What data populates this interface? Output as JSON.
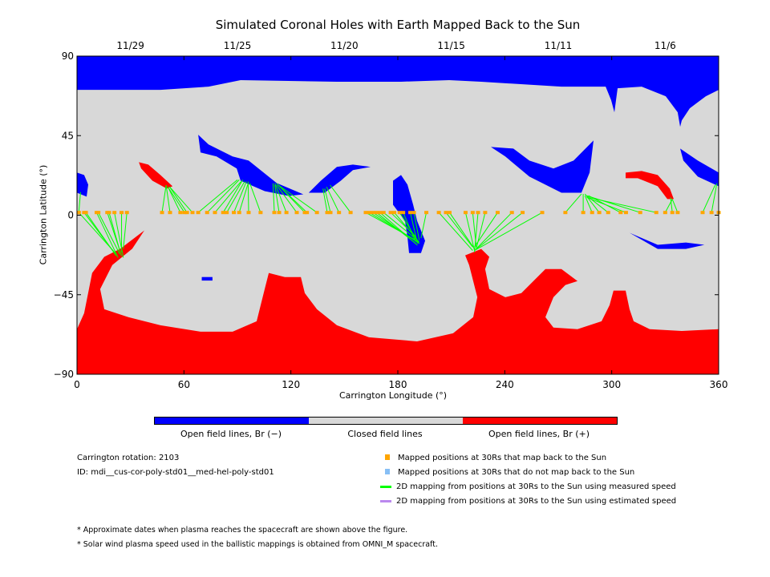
{
  "chart_data": {
    "type": "map",
    "title": "Simulated Coronal Holes with Earth Mapped Back to the Sun",
    "xlabel": "Carrington Longitude (°)",
    "ylabel": "Carrington Latitude (°)",
    "xlim": [
      0,
      360
    ],
    "ylim": [
      -90,
      90
    ],
    "xticks": [
      "0",
      "60",
      "120",
      "180",
      "240",
      "300",
      "360"
    ],
    "yticks": [
      "90",
      "45",
      "0",
      "−45",
      "−90"
    ],
    "top_dates": [
      {
        "label": "11/29",
        "lon": 30
      },
      {
        "label": "11/25",
        "lon": 90
      },
      {
        "label": "11/20",
        "lon": 150
      },
      {
        "label": "11/15",
        "lon": 210
      },
      {
        "label": "11/11",
        "lon": 270
      },
      {
        "label": "11/6",
        "lon": 330
      }
    ],
    "colors": {
      "negative": "#0000ff",
      "closed": "#d8d8d8",
      "positive": "#ff0000",
      "mapped": "#ffa500",
      "unmapped": "#87bff5",
      "measured": "#00ff00",
      "estimated": "#bb88ee"
    },
    "regions": [
      {
        "polarity": "negative",
        "points": [
          [
            0,
            90
          ],
          [
            360,
            90
          ],
          [
            360,
            70.9
          ],
          [
            352.8,
            67.3
          ],
          [
            343.8,
            60.5
          ],
          [
            339.3,
            53.6
          ],
          [
            338.4,
            50
          ],
          [
            337,
            58.2
          ],
          [
            330.3,
            67.3
          ],
          [
            316.8,
            72.7
          ],
          [
            303.3,
            71.8
          ],
          [
            301.5,
            58.2
          ],
          [
            299.7,
            65
          ],
          [
            296.6,
            72.7
          ],
          [
            271.8,
            72.7
          ],
          [
            226.8,
            75.5
          ],
          [
            208.8,
            76.4
          ],
          [
            181.8,
            75.5
          ],
          [
            145.8,
            75.5
          ],
          [
            91.8,
            76.4
          ],
          [
            73.8,
            72.7
          ],
          [
            46.8,
            70.9
          ],
          [
            0,
            70.9
          ]
        ]
      },
      {
        "polarity": "positive",
        "points": [
          [
            0,
            -64.5
          ],
          [
            4,
            -55.5
          ],
          [
            8.5,
            -32.7
          ],
          [
            15.3,
            -23.6
          ],
          [
            24.3,
            -19
          ],
          [
            37.8,
            -8.6
          ],
          [
            31,
            -19
          ],
          [
            19.8,
            -28.2
          ],
          [
            13,
            -41.8
          ],
          [
            15.3,
            -53.2
          ],
          [
            28.8,
            -57.7
          ],
          [
            46.8,
            -62.3
          ],
          [
            69.3,
            -65.9
          ],
          [
            87.3,
            -65.9
          ],
          [
            100.8,
            -60
          ],
          [
            105.3,
            -41.8
          ],
          [
            107.6,
            -32.7
          ],
          [
            116.6,
            -35
          ],
          [
            125.6,
            -35
          ],
          [
            127.8,
            -44.1
          ],
          [
            134.6,
            -53.2
          ],
          [
            145.8,
            -62.3
          ],
          [
            163.8,
            -69.1
          ],
          [
            190.8,
            -71.4
          ],
          [
            211,
            -66.8
          ],
          [
            222.3,
            -57.7
          ],
          [
            224.6,
            -46.4
          ],
          [
            220,
            -28.2
          ],
          [
            217.8,
            -22.7
          ],
          [
            226.8,
            -19.1
          ],
          [
            231.3,
            -23.6
          ],
          [
            229,
            -30.5
          ],
          [
            231.3,
            -41.8
          ],
          [
            240.3,
            -46.4
          ],
          [
            249.3,
            -44.1
          ],
          [
            262.8,
            -30.5
          ],
          [
            271.8,
            -30.5
          ],
          [
            280.8,
            -37.3
          ],
          [
            274,
            -39.5
          ],
          [
            267.3,
            -46.4
          ],
          [
            262.8,
            -57.7
          ],
          [
            267.3,
            -63.6
          ],
          [
            280.8,
            -64.5
          ],
          [
            294.3,
            -60
          ],
          [
            298.8,
            -50.9
          ],
          [
            301,
            -42.7
          ],
          [
            307.8,
            -42.7
          ],
          [
            310,
            -53.2
          ],
          [
            312.3,
            -60
          ],
          [
            321.3,
            -64.5
          ],
          [
            339.3,
            -65.5
          ],
          [
            360,
            -64.5
          ],
          [
            360,
            -90
          ],
          [
            0,
            -90
          ]
        ]
      },
      {
        "polarity": "negative",
        "points": [
          [
            0,
            24.1
          ],
          [
            4,
            22.7
          ],
          [
            6.3,
            17.3
          ],
          [
            5.4,
            10.5
          ],
          [
            0,
            12.7
          ]
        ]
      },
      {
        "polarity": "negative",
        "points": [
          [
            68,
            45.5
          ],
          [
            73.8,
            40
          ],
          [
            87.3,
            33.2
          ],
          [
            96.3,
            30.9
          ],
          [
            112,
            18.2
          ],
          [
            127,
            11.8
          ],
          [
            118.8,
            10.9
          ],
          [
            105.3,
            13.6
          ],
          [
            91.8,
            19.5
          ],
          [
            89.6,
            26.4
          ],
          [
            78.3,
            33.2
          ],
          [
            69.3,
            35.5
          ]
        ]
      },
      {
        "polarity": "negative",
        "points": [
          [
            130,
            12.7
          ],
          [
            136.8,
            19.5
          ],
          [
            145.8,
            27.3
          ],
          [
            154.8,
            28.6
          ],
          [
            164.7,
            27.3
          ],
          [
            154.8,
            25.5
          ],
          [
            148,
            19.5
          ],
          [
            139,
            12.7
          ]
        ]
      },
      {
        "polarity": "negative",
        "points": [
          [
            177.3,
            19.5
          ],
          [
            181.8,
            22.7
          ],
          [
            185.4,
            17.3
          ],
          [
            188.6,
            5.9
          ],
          [
            190.8,
            -3.2
          ],
          [
            195.3,
            -14.5
          ],
          [
            193,
            -21.4
          ],
          [
            186.3,
            -21.4
          ],
          [
            185.4,
            -12.3
          ],
          [
            184,
            -3.2
          ],
          [
            177.3,
            5.9
          ]
        ]
      },
      {
        "polarity": "negative",
        "points": [
          [
            232.2,
            38.6
          ],
          [
            244.8,
            37.7
          ],
          [
            253.8,
            30.9
          ],
          [
            267.3,
            26.4
          ],
          [
            278.6,
            30.9
          ],
          [
            289.8,
            42.3
          ],
          [
            287.6,
            24.1
          ],
          [
            283,
            12.7
          ],
          [
            271.8,
            12.7
          ],
          [
            253.8,
            21.8
          ],
          [
            240.3,
            33.2
          ]
        ]
      },
      {
        "polarity": "negative",
        "points": [
          [
            310,
            -10
          ],
          [
            325.8,
            -16.8
          ],
          [
            341.6,
            -15.5
          ],
          [
            352,
            -16.8
          ],
          [
            341.6,
            -19.1
          ],
          [
            325.8,
            -19.1
          ]
        ]
      },
      {
        "polarity": "negative",
        "points": [
          [
            338.4,
            37.7
          ],
          [
            348.3,
            30.9
          ],
          [
            360,
            24.1
          ],
          [
            360,
            16.4
          ],
          [
            348.3,
            21.8
          ],
          [
            340.2,
            30.9
          ]
        ]
      },
      {
        "polarity": "negative",
        "points": [
          [
            70,
            -35
          ],
          [
            76,
            -35
          ],
          [
            76,
            -37
          ],
          [
            70,
            -37
          ]
        ]
      },
      {
        "polarity": "positive",
        "points": [
          [
            34.7,
            30
          ],
          [
            40,
            28.6
          ],
          [
            46.8,
            22.7
          ],
          [
            53.6,
            16.4
          ],
          [
            50.4,
            15
          ],
          [
            42.3,
            19.5
          ],
          [
            36,
            26.4
          ]
        ]
      },
      {
        "polarity": "positive",
        "points": [
          [
            307.8,
            24.1
          ],
          [
            316.8,
            25
          ],
          [
            325.8,
            22.7
          ],
          [
            332.6,
            15
          ],
          [
            334.8,
            9.1
          ],
          [
            331.2,
            9.1
          ],
          [
            325.8,
            16.4
          ],
          [
            314.6,
            20.9
          ],
          [
            307.8,
            20.9
          ]
        ]
      }
    ],
    "mapped_lat": 1.5,
    "mappings": [
      [
        1,
        2,
        13
      ],
      [
        1,
        22,
        -22
      ],
      [
        4,
        20,
        -20
      ],
      [
        5,
        22,
        -23
      ],
      [
        11,
        23,
        -24
      ],
      [
        12,
        24,
        -22
      ],
      [
        17,
        25,
        -23
      ],
      [
        18,
        24,
        -20
      ],
      [
        21,
        26,
        -24
      ],
      [
        25,
        25,
        -21
      ],
      [
        28,
        26,
        -19
      ],
      [
        47.7,
        50,
        17
      ],
      [
        52.2,
        50,
        17
      ],
      [
        58,
        51,
        16
      ],
      [
        60.3,
        51,
        16
      ],
      [
        61.7,
        52,
        16
      ],
      [
        64.8,
        52,
        16
      ],
      [
        68,
        90,
        20
      ],
      [
        73,
        91,
        20
      ],
      [
        77.4,
        92,
        19
      ],
      [
        82,
        93,
        20
      ],
      [
        84,
        94,
        19
      ],
      [
        88,
        95,
        19
      ],
      [
        91,
        96,
        18
      ],
      [
        96.3,
        96,
        19
      ],
      [
        103,
        97,
        18
      ],
      [
        110.7,
        110,
        18
      ],
      [
        113.4,
        111,
        17
      ],
      [
        117.5,
        111,
        18
      ],
      [
        123.3,
        112,
        17
      ],
      [
        127.8,
        113,
        17
      ],
      [
        129,
        112,
        18
      ],
      [
        134.6,
        113,
        17
      ],
      [
        140.4,
        138,
        15
      ],
      [
        142.2,
        139,
        15
      ],
      [
        147,
        140,
        16
      ],
      [
        153.5,
        142,
        17
      ],
      [
        162,
        190,
        -14
      ],
      [
        164,
        191,
        -15
      ],
      [
        166,
        192,
        -16
      ],
      [
        168,
        190,
        -16
      ],
      [
        170,
        191,
        -17
      ],
      [
        172,
        192,
        -15
      ],
      [
        176,
        190,
        -12
      ],
      [
        178,
        191,
        -14
      ],
      [
        181,
        192,
        -16
      ],
      [
        183,
        190,
        -15
      ],
      [
        187,
        191,
        -16
      ],
      [
        189,
        192,
        -14
      ],
      [
        196,
        193,
        -13
      ],
      [
        203,
        222,
        -20
      ],
      [
        207,
        222,
        -18
      ],
      [
        209,
        223,
        -19
      ],
      [
        218,
        223,
        -20
      ],
      [
        222,
        224,
        -18
      ],
      [
        225,
        223,
        -21
      ],
      [
        229,
        224,
        -19
      ],
      [
        236,
        223,
        -18
      ],
      [
        244,
        224,
        -19
      ],
      [
        250,
        223,
        -20
      ],
      [
        261,
        223,
        -20
      ],
      [
        274,
        283,
        12
      ],
      [
        284,
        284,
        12
      ],
      [
        289,
        285,
        11
      ],
      [
        293,
        285,
        12
      ],
      [
        298,
        286,
        11
      ],
      [
        305,
        287,
        11
      ],
      [
        308,
        286,
        10
      ],
      [
        316,
        286,
        11
      ],
      [
        325,
        287,
        10
      ],
      [
        330,
        334,
        9
      ],
      [
        334,
        333,
        10
      ],
      [
        337,
        334,
        9
      ],
      [
        351,
        358,
        17
      ],
      [
        356,
        359,
        18
      ],
      [
        360,
        360,
        17
      ]
    ]
  },
  "colorbar": {
    "labels": [
      "Open field lines, Br (−)",
      "Closed field lines",
      "Open field lines, Br (+)"
    ]
  },
  "info": {
    "rotation": "Carrington rotation: 2103",
    "id": "ID: mdi__cus-cor-poly-std01__med-hel-poly-std01"
  },
  "legend": [
    "Mapped positions at 30Rs that map back to the Sun",
    "Mapped positions at 30Rs that do not map back to the Sun",
    "2D mapping from positions at 30Rs to the Sun using measured speed",
    "2D mapping from positions at 30Rs to the Sun using estimated speed"
  ],
  "notes": [
    "* Approximate dates when plasma reaches the spacecraft are shown above the figure.",
    "* Solar wind plasma speed used in the ballistic mappings is obtained from OMNI_M spacecraft."
  ]
}
